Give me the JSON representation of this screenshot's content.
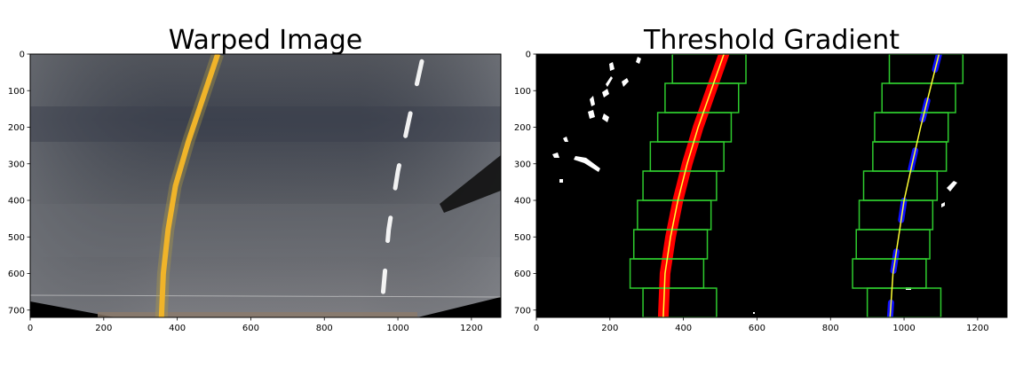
{
  "chart_data": [
    {
      "type": "image",
      "title": "Warped Image",
      "xlim": [
        0,
        1280
      ],
      "ylim": [
        720,
        0
      ],
      "xticks": [
        0,
        200,
        400,
        600,
        800,
        1000,
        1200
      ],
      "yticks": [
        0,
        100,
        200,
        300,
        400,
        500,
        600,
        700
      ],
      "lane_lines": [
        {
          "name": "",
          "color": "#f0b429",
          "x": [
            510,
            470,
            430,
            395,
            375,
            362,
            357
          ],
          "y": [
            0,
            120,
            240,
            360,
            480,
            600,
            720
          ]
        },
        {
          "name": "",
          "color": "#ffffff",
          "style": "dashed",
          "x": [
            1065,
            1030,
            1000,
            975,
            960
          ],
          "y": [
            20,
            180,
            320,
            480,
            650
          ]
        }
      ]
    },
    {
      "type": "image",
      "title": "Threshold Gradient",
      "xlim": [
        0,
        1280
      ],
      "ylim": [
        720,
        0
      ],
      "xticks": [
        0,
        200,
        400,
        600,
        800,
        1000,
        1200
      ],
      "yticks": [
        0,
        100,
        200,
        300,
        400,
        500,
        600,
        700
      ],
      "windows_left": [
        {
          "xc": 390,
          "y0": 640,
          "y1": 720
        },
        {
          "xc": 355,
          "y0": 560,
          "y1": 640
        },
        {
          "xc": 365,
          "y0": 480,
          "y1": 560
        },
        {
          "xc": 375,
          "y0": 400,
          "y1": 480
        },
        {
          "xc": 390,
          "y0": 320,
          "y1": 400
        },
        {
          "xc": 410,
          "y0": 240,
          "y1": 320
        },
        {
          "xc": 430,
          "y0": 160,
          "y1": 240
        },
        {
          "xc": 450,
          "y0": 80,
          "y1": 160
        },
        {
          "xc": 470,
          "y0": 0,
          "y1": 80
        }
      ],
      "windows_right": [
        {
          "xc": 1000,
          "y0": 640,
          "y1": 720
        },
        {
          "xc": 960,
          "y0": 560,
          "y1": 640
        },
        {
          "xc": 970,
          "y0": 480,
          "y1": 560
        },
        {
          "xc": 978,
          "y0": 400,
          "y1": 480
        },
        {
          "xc": 990,
          "y0": 320,
          "y1": 400
        },
        {
          "xc": 1015,
          "y0": 240,
          "y1": 320
        },
        {
          "xc": 1020,
          "y0": 160,
          "y1": 240
        },
        {
          "xc": 1040,
          "y0": 80,
          "y1": 160
        },
        {
          "xc": 1060,
          "y0": 0,
          "y1": 80
        }
      ],
      "window_half_width": 100,
      "window_color": "#2ecc2e",
      "fit_color": "#ffff33",
      "left_pixel_color": "#ff0000",
      "right_pixel_color": "#1010ff",
      "left_fit": {
        "x": [
          510,
          475,
          440,
          410,
          385,
          365,
          350,
          345
        ],
        "y": [
          0,
          100,
          200,
          300,
          400,
          500,
          600,
          720
        ]
      },
      "right_fit": {
        "x": [
          1095,
          1070,
          1045,
          1022,
          1000,
          985,
          970,
          962
        ],
        "y": [
          0,
          100,
          200,
          300,
          400,
          500,
          600,
          720
        ]
      }
    }
  ]
}
